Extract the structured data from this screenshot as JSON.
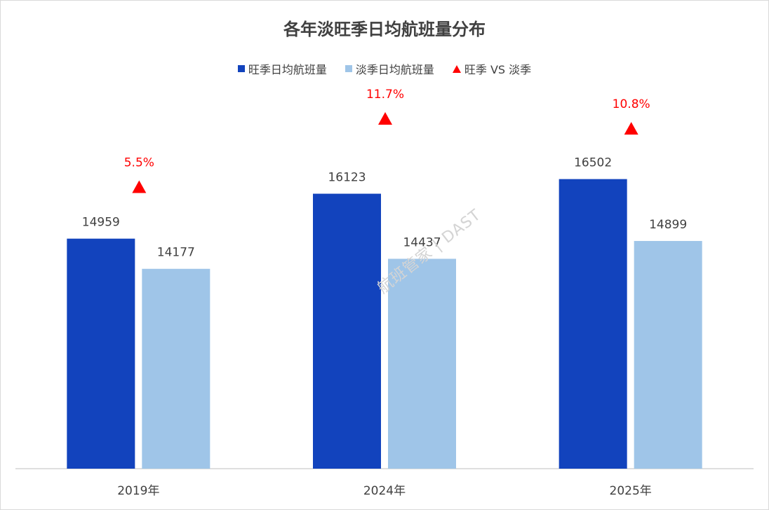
{
  "watermark": "航班管家 | DAST",
  "colors": {
    "peak": "#1243BD",
    "off": "#9FC5E8",
    "ratio": "#FF0000",
    "axis": "#BFBFBF",
    "text": "#404040"
  },
  "chart_data": {
    "type": "bar",
    "title": "各年淡旺季日均航班量分布",
    "categories": [
      "2019年",
      "2024年",
      "2025年"
    ],
    "series": [
      {
        "name": "旺季日均航班量",
        "values": [
          14959,
          16123,
          16502
        ]
      },
      {
        "name": "淡季日均航班量",
        "values": [
          14177,
          14437,
          14899
        ]
      }
    ],
    "ratio_series": {
      "name": "旺季 VS 淡季",
      "values": [
        5.5,
        11.7,
        10.8
      ],
      "labels": [
        "5.5%",
        "11.7%",
        "10.8%"
      ]
    },
    "ylim": [
      9000,
      19000
    ],
    "ylim_secondary": [
      -20,
      15
    ],
    "legend_position": "top",
    "grid": false,
    "xlabel": "",
    "ylabel": ""
  }
}
